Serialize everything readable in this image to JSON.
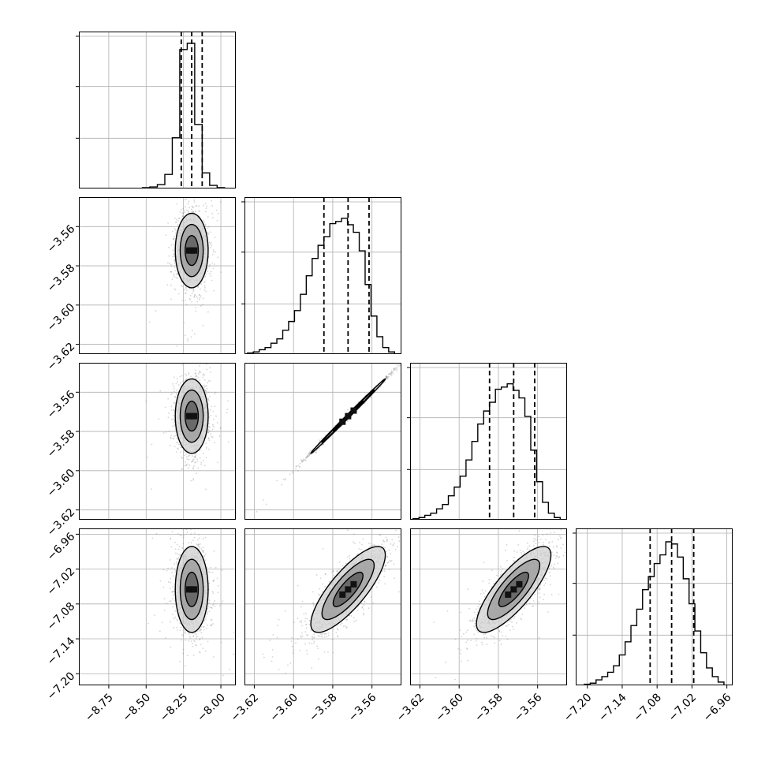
{
  "figure": {
    "type": "corner_plot",
    "parameters": 4,
    "colors": {
      "line": "#000000",
      "grid": "#b0b0b0",
      "scatter": "#888888",
      "background": "#ffffff"
    }
  },
  "chart_data": [
    {
      "type": "histogram",
      "panel": "hist-1",
      "range": [
        -8.95,
        -7.9
      ],
      "bins": [
        -8.5,
        -8.45,
        -8.4,
        -8.35,
        -8.3,
        -8.25,
        -8.2,
        -8.15,
        -8.1,
        -8.05,
        -8.0,
        -7.95
      ],
      "counts": [
        1,
        2,
        5,
        18,
        65,
        178,
        186,
        82,
        20,
        4,
        1,
        0
      ],
      "ymax": 195,
      "quantiles": [
        -8.265,
        -8.195,
        -8.125
      ]
    },
    {
      "type": "histogram",
      "panel": "hist-2",
      "range": [
        -3.625,
        -3.545
      ],
      "bins": [
        -3.622,
        -3.619,
        -3.616,
        -3.613,
        -3.61,
        -3.607,
        -3.604,
        -3.601,
        -3.598,
        -3.595,
        -3.592,
        -3.589,
        -3.586,
        -3.583,
        -3.58,
        -3.577,
        -3.574,
        -3.571,
        -3.568,
        -3.565,
        -3.562,
        -3.559,
        -3.556,
        -3.553,
        -3.55
      ],
      "counts": [
        1,
        2,
        4,
        6,
        10,
        14,
        22,
        30,
        40,
        55,
        72,
        88,
        100,
        108,
        120,
        122,
        125,
        119,
        112,
        95,
        64,
        35,
        16,
        6,
        2
      ],
      "ymax": 140,
      "quantiles": [
        -3.5845,
        -3.5722,
        -3.5615
      ]
    },
    {
      "type": "histogram",
      "panel": "hist-3",
      "range": [
        -3.625,
        -3.545
      ],
      "bins": [
        -3.622,
        -3.619,
        -3.616,
        -3.613,
        -3.61,
        -3.607,
        -3.604,
        -3.601,
        -3.598,
        -3.595,
        -3.592,
        -3.589,
        -3.586,
        -3.583,
        -3.58,
        -3.577,
        -3.574,
        -3.571,
        -3.568,
        -3.565,
        -3.562,
        -3.559,
        -3.556,
        -3.553,
        -3.55
      ],
      "counts": [
        1,
        2,
        4,
        6,
        10,
        14,
        22,
        30,
        40,
        55,
        72,
        88,
        100,
        108,
        120,
        122,
        125,
        119,
        112,
        95,
        64,
        35,
        16,
        6,
        2
      ],
      "ymax": 140,
      "quantiles": [
        -3.5845,
        -3.5722,
        -3.5615
      ]
    },
    {
      "type": "histogram",
      "panel": "hist-4",
      "range": [
        -7.22,
        -6.95
      ],
      "bins": [
        -7.21,
        -7.2,
        -7.19,
        -7.18,
        -7.17,
        -7.16,
        -7.15,
        -7.14,
        -7.13,
        -7.12,
        -7.11,
        -7.1,
        -7.09,
        -7.08,
        -7.07,
        -7.06,
        -7.05,
        -7.04,
        -7.03,
        -7.02,
        -7.01,
        -7.0,
        -6.99,
        -6.98,
        -6.97,
        -6.96
      ],
      "counts": [
        0,
        1,
        2,
        5,
        8,
        12,
        18,
        28,
        40,
        55,
        70,
        88,
        100,
        112,
        120,
        132,
        130,
        118,
        98,
        75,
        50,
        30,
        16,
        8,
        3,
        0
      ],
      "ymax": 140,
      "quantiles": [
        -7.092,
        -7.055,
        -7.017
      ]
    },
    {
      "type": "scatter",
      "panel": "pair-2-1",
      "x_range": [
        -8.95,
        -7.9
      ],
      "y_range": [
        -3.625,
        -3.545
      ],
      "mean": [
        -8.195,
        -3.5722
      ],
      "sd": [
        0.055,
        0.0095
      ],
      "corr": 0.0
    },
    {
      "type": "scatter",
      "panel": "pair-3-1",
      "x_range": [
        -8.95,
        -7.9
      ],
      "y_range": [
        -3.625,
        -3.545
      ],
      "mean": [
        -8.195,
        -3.5722
      ],
      "sd": [
        0.055,
        0.0095
      ],
      "corr": 0.0
    },
    {
      "type": "scatter",
      "panel": "pair-3-2",
      "x_range": [
        -3.625,
        -3.545
      ],
      "y_range": [
        -3.625,
        -3.545
      ],
      "mean": [
        -3.5722,
        -3.5722
      ],
      "sd": [
        0.0095,
        0.0095
      ],
      "corr": 0.998
    },
    {
      "type": "scatter",
      "panel": "pair-4-1",
      "x_range": [
        -8.95,
        -7.9
      ],
      "y_range": [
        -7.22,
        -6.95
      ],
      "mean": [
        -8.195,
        -7.055
      ],
      "sd": [
        0.055,
        0.037
      ],
      "corr": 0.0
    },
    {
      "type": "scatter",
      "panel": "pair-4-2",
      "x_range": [
        -3.625,
        -3.545
      ],
      "y_range": [
        -7.22,
        -6.95
      ],
      "mean": [
        -3.5722,
        -7.055
      ],
      "sd": [
        0.0095,
        0.037
      ],
      "corr": 0.8
    },
    {
      "type": "scatter",
      "panel": "pair-4-3",
      "x_range": [
        -3.625,
        -3.545
      ],
      "y_range": [
        -7.22,
        -6.95
      ],
      "mean": [
        -3.5722,
        -7.055
      ],
      "sd": [
        0.0095,
        0.037
      ],
      "corr": 0.8
    }
  ],
  "ticks": {
    "p1": {
      "values": [
        -8.75,
        -8.5,
        -8.25,
        -8.0
      ],
      "labels": [
        "−8.75",
        "−8.50",
        "−8.25",
        "−8.00"
      ]
    },
    "p2": {
      "values": [
        -3.62,
        -3.6,
        -3.58,
        -3.56
      ],
      "labels": [
        "−3.62",
        "−3.60",
        "−3.58",
        "−3.56"
      ]
    },
    "p3": {
      "values": [
        -3.62,
        -3.6,
        -3.58,
        -3.56
      ],
      "labels": [
        "−3.62",
        "−3.60",
        "−3.58",
        "−3.56"
      ]
    },
    "p4": {
      "values": [
        -7.2,
        -7.14,
        -7.08,
        -7.02,
        -6.96
      ],
      "labels": [
        "−7.20",
        "−7.14",
        "−7.08",
        "−7.02",
        "−6.96"
      ]
    },
    "hist_y_fractions": [
      0.33,
      0.67,
      1.0
    ]
  }
}
